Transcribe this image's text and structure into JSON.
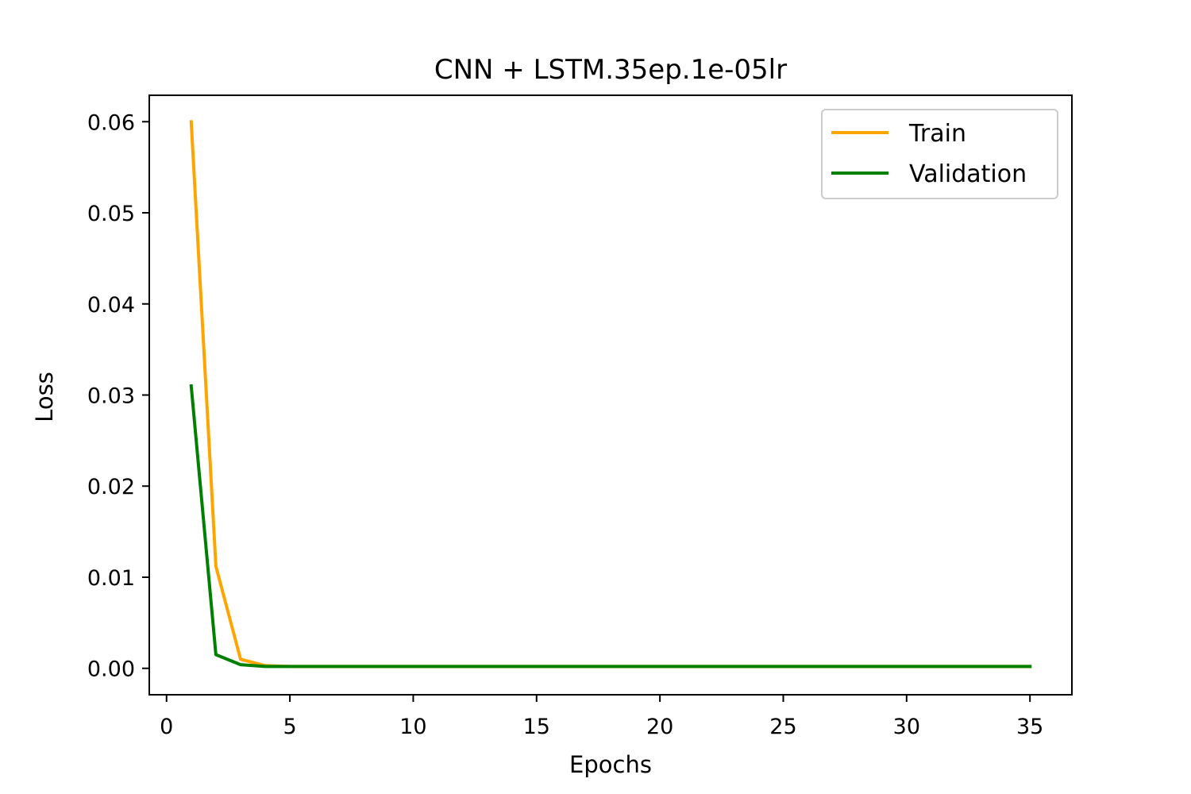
{
  "chart_data": {
    "type": "line",
    "title": "CNN + LSTM.35ep.1e-05lr",
    "xlabel": "Epochs",
    "ylabel": "Loss",
    "xlim": [
      -0.7,
      36.7
    ],
    "ylim": [
      -0.0029,
      0.0629
    ],
    "xticks": [
      0,
      5,
      10,
      15,
      20,
      25,
      30,
      35
    ],
    "yticks": [
      0.0,
      0.01,
      0.02,
      0.03,
      0.04,
      0.05,
      0.06
    ],
    "ytick_labels": [
      "0.00",
      "0.01",
      "0.02",
      "0.03",
      "0.04",
      "0.05",
      "0.06"
    ],
    "grid": false,
    "legend_position": "top-right",
    "x": [
      1,
      2,
      3,
      4,
      5,
      6,
      7,
      8,
      9,
      10,
      11,
      12,
      13,
      14,
      15,
      16,
      17,
      18,
      19,
      20,
      21,
      22,
      23,
      24,
      25,
      26,
      27,
      28,
      29,
      30,
      31,
      32,
      33,
      34,
      35
    ],
    "series": [
      {
        "name": "Train",
        "color": "#ffa500",
        "values": [
          0.06,
          0.0112,
          0.001,
          0.0003,
          0.0002,
          0.0002,
          0.0002,
          0.0002,
          0.0002,
          0.0002,
          0.0002,
          0.0002,
          0.0002,
          0.0002,
          0.0002,
          0.0002,
          0.0002,
          0.0002,
          0.0002,
          0.0002,
          0.0002,
          0.0002,
          0.0002,
          0.0002,
          0.0002,
          0.0002,
          0.0002,
          0.0002,
          0.0002,
          0.0002,
          0.0002,
          0.0002,
          0.0002,
          0.0002,
          0.0002
        ]
      },
      {
        "name": "Validation",
        "color": "#008000",
        "values": [
          0.031,
          0.0015,
          0.0004,
          0.0002,
          0.0002,
          0.0002,
          0.0002,
          0.0002,
          0.0002,
          0.0002,
          0.0002,
          0.0002,
          0.0002,
          0.0002,
          0.0002,
          0.0002,
          0.0002,
          0.0002,
          0.0002,
          0.0002,
          0.0002,
          0.0002,
          0.0002,
          0.0002,
          0.0002,
          0.0002,
          0.0002,
          0.0002,
          0.0002,
          0.0002,
          0.0002,
          0.0002,
          0.0002,
          0.0002,
          0.0002
        ]
      }
    ]
  }
}
